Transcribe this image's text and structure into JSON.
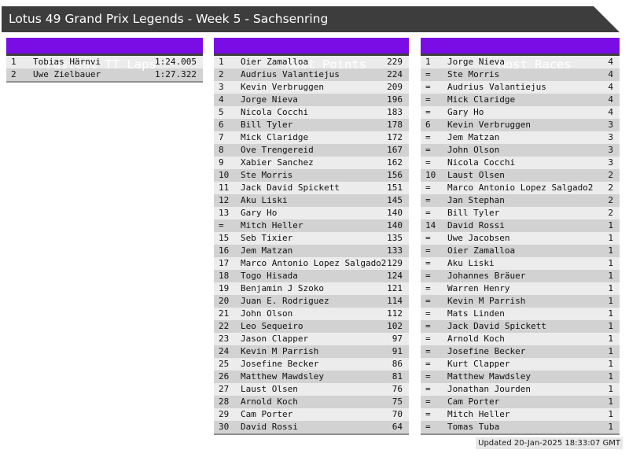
{
  "title": "Lotus 49 Grand Prix Legends - Week 5 - Sachsenring",
  "updated": "Updated 20-Jan-2025 18:33:07 GMT",
  "colors": {
    "accent": "#7a0de6",
    "titlebar": "#3d3d3d",
    "row_light": "#ececec",
    "row_dark": "#d2d2d2"
  },
  "panels": [
    {
      "title": "Fastest TT Laps",
      "rows": [
        {
          "rank": "1",
          "name": "Tobias Härnvi",
          "value": "1:24.005"
        },
        {
          "rank": "2",
          "name": "Uwe Zielbauer",
          "value": "1:27.322"
        }
      ]
    },
    {
      "title": "Most Points",
      "rows": [
        {
          "rank": "1",
          "name": "Oier Zamalloa",
          "value": "229"
        },
        {
          "rank": "2",
          "name": "Audrius Valantiejus",
          "value": "224"
        },
        {
          "rank": "3",
          "name": "Kevin Verbruggen",
          "value": "209"
        },
        {
          "rank": "4",
          "name": "Jorge Nieva",
          "value": "196"
        },
        {
          "rank": "5",
          "name": "Nicola Cocchi",
          "value": "183"
        },
        {
          "rank": "6",
          "name": "Bill Tyler",
          "value": "178"
        },
        {
          "rank": "7",
          "name": "Mick Claridge",
          "value": "172"
        },
        {
          "rank": "8",
          "name": "Ove Trengereid",
          "value": "167"
        },
        {
          "rank": "9",
          "name": "Xabier Sanchez",
          "value": "162"
        },
        {
          "rank": "10",
          "name": "Ste Morris",
          "value": "156"
        },
        {
          "rank": "11",
          "name": "Jack David Spickett",
          "value": "151"
        },
        {
          "rank": "12",
          "name": "Aku Liski",
          "value": "145"
        },
        {
          "rank": "13",
          "name": "Gary Ho",
          "value": "140"
        },
        {
          "rank": "=",
          "name": "Mitch Heller",
          "value": "140"
        },
        {
          "rank": "15",
          "name": "Seb Tixier",
          "value": "135"
        },
        {
          "rank": "16",
          "name": "Jem Matzan",
          "value": "133"
        },
        {
          "rank": "17",
          "name": "Marco Antonio Lopez Salgado2",
          "value": "129"
        },
        {
          "rank": "18",
          "name": "Togo Hisada",
          "value": "124"
        },
        {
          "rank": "19",
          "name": "Benjamin J Szoko",
          "value": "121"
        },
        {
          "rank": "20",
          "name": "Juan E. Rodriguez",
          "value": "114"
        },
        {
          "rank": "21",
          "name": "John Olson",
          "value": "112"
        },
        {
          "rank": "22",
          "name": "Leo Sequeiro",
          "value": "102"
        },
        {
          "rank": "23",
          "name": "Jason Clapper",
          "value": "97"
        },
        {
          "rank": "24",
          "name": "Kevin M Parrish",
          "value": "91"
        },
        {
          "rank": "25",
          "name": "Josefine Becker",
          "value": "86"
        },
        {
          "rank": "26",
          "name": "Matthew Mawdsley",
          "value": "81"
        },
        {
          "rank": "27",
          "name": "Laust Olsen",
          "value": "76"
        },
        {
          "rank": "28",
          "name": "Arnold Koch",
          "value": "75"
        },
        {
          "rank": "29",
          "name": "Cam Porter",
          "value": "70"
        },
        {
          "rank": "30",
          "name": "David Rossi",
          "value": "64"
        }
      ]
    },
    {
      "title": "Most Races",
      "rows": [
        {
          "rank": "1",
          "name": "Jorge Nieva",
          "value": "4"
        },
        {
          "rank": "=",
          "name": "Ste Morris",
          "value": "4"
        },
        {
          "rank": "=",
          "name": "Audrius Valantiejus",
          "value": "4"
        },
        {
          "rank": "=",
          "name": "Mick Claridge",
          "value": "4"
        },
        {
          "rank": "=",
          "name": "Gary Ho",
          "value": "4"
        },
        {
          "rank": "6",
          "name": "Kevin Verbruggen",
          "value": "3"
        },
        {
          "rank": "=",
          "name": "Jem Matzan",
          "value": "3"
        },
        {
          "rank": "=",
          "name": "John Olson",
          "value": "3"
        },
        {
          "rank": "=",
          "name": "Nicola Cocchi",
          "value": "3"
        },
        {
          "rank": "10",
          "name": "Laust Olsen",
          "value": "2"
        },
        {
          "rank": "=",
          "name": "Marco Antonio Lopez Salgado2",
          "value": "2"
        },
        {
          "rank": "=",
          "name": "Jan Stephan",
          "value": "2"
        },
        {
          "rank": "=",
          "name": "Bill Tyler",
          "value": "2"
        },
        {
          "rank": "14",
          "name": "David Rossi",
          "value": "1"
        },
        {
          "rank": "=",
          "name": "Uwe Jacobsen",
          "value": "1"
        },
        {
          "rank": "=",
          "name": "Oier Zamalloa",
          "value": "1"
        },
        {
          "rank": "=",
          "name": "Aku Liski",
          "value": "1"
        },
        {
          "rank": "=",
          "name": "Johannes Bräuer",
          "value": "1"
        },
        {
          "rank": "=",
          "name": "Warren Henry",
          "value": "1"
        },
        {
          "rank": "=",
          "name": "Kevin M Parrish",
          "value": "1"
        },
        {
          "rank": "=",
          "name": "Mats Linden",
          "value": "1"
        },
        {
          "rank": "=",
          "name": "Jack David Spickett",
          "value": "1"
        },
        {
          "rank": "=",
          "name": "Arnold Koch",
          "value": "1"
        },
        {
          "rank": "=",
          "name": "Josefine Becker",
          "value": "1"
        },
        {
          "rank": "=",
          "name": "Kurt Clapper",
          "value": "1"
        },
        {
          "rank": "=",
          "name": "Matthew Mawdsley",
          "value": "1"
        },
        {
          "rank": "=",
          "name": "Jonathan Jourden",
          "value": "1"
        },
        {
          "rank": "=",
          "name": "Cam Porter",
          "value": "1"
        },
        {
          "rank": "=",
          "name": "Mitch Heller",
          "value": "1"
        },
        {
          "rank": "=",
          "name": "Tomas Tuba",
          "value": "1"
        }
      ]
    }
  ]
}
